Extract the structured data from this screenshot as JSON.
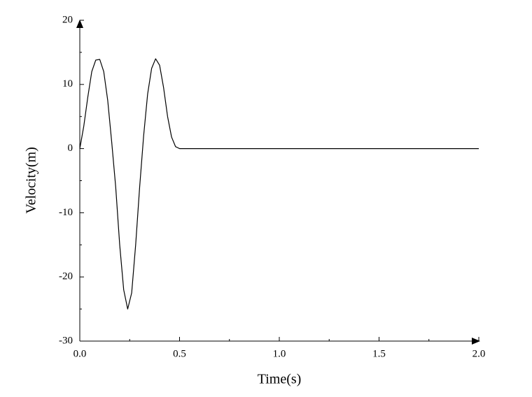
{
  "chart_data": {
    "type": "line",
    "x_label": "Time(s)",
    "y_label": "Velocity(m)",
    "x": [
      0,
      0.02,
      0.04,
      0.06,
      0.08,
      0.1,
      0.12,
      0.14,
      0.16,
      0.18,
      0.2,
      0.22,
      0.24,
      0.26,
      0.28,
      0.3,
      0.32,
      0.34,
      0.36,
      0.38,
      0.4,
      0.42,
      0.44,
      0.46,
      0.48,
      0.5,
      2.0
    ],
    "series": [
      {
        "color": "#000000",
        "values": [
          0,
          3.5,
          8,
          12,
          13.8,
          13.9,
          12,
          7.5,
          1,
          -6,
          -15,
          -22,
          -25,
          -22.5,
          -15,
          -6,
          2,
          8.5,
          12.5,
          14,
          13,
          9.5,
          5,
          1.8,
          0.3,
          0,
          0
        ]
      }
    ],
    "xlim": [
      0,
      2.0
    ],
    "ylim": [
      -30,
      20
    ],
    "xticks": [
      {
        "value": 0,
        "label": "0.0"
      },
      {
        "value": 0.5,
        "label": "0.5"
      },
      {
        "value": 1.0,
        "label": "1.0"
      },
      {
        "value": 1.5,
        "label": "1.5"
      },
      {
        "value": 2.0,
        "label": "2.0"
      }
    ],
    "yticks": [
      -30,
      -20,
      -10,
      0,
      10,
      20
    ],
    "xminorticks": [
      0.25,
      0.75,
      1.25,
      1.75
    ],
    "yminorticks": [
      -25,
      -15,
      -5,
      5,
      15
    ],
    "grid": false
  }
}
